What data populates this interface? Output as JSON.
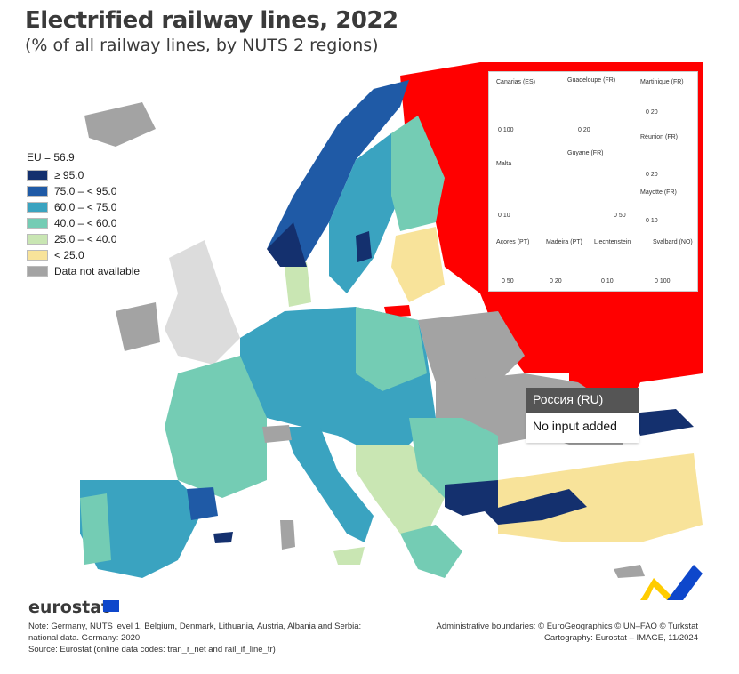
{
  "title": "Electrified railway lines, 2022",
  "subtitle": "(% of all railway lines, by NUTS 2 regions)",
  "legend": {
    "eu_value": "EU = 56.9",
    "classes": [
      {
        "label": "≥ 95.0",
        "color": "#14306e"
      },
      {
        "label": "75.0 – < 95.0",
        "color": "#1f5aa6"
      },
      {
        "label": "60.0 – < 75.0",
        "color": "#3aa3c0"
      },
      {
        "label": "40.0 – < 60.0",
        "color": "#74ccb4"
      },
      {
        "label": "25.0 – < 40.0",
        "color": "#c9e6b3"
      },
      {
        "label": "< 25.0",
        "color": "#f8e39a"
      },
      {
        "label": "Data not available",
        "color": "#a3a3a3"
      }
    ]
  },
  "tooltip": {
    "region": "Россия (RU)",
    "value": "No input added",
    "highlight_color": "#ff0000"
  },
  "insets": {
    "labels": [
      "Canarias (ES)",
      "Guadeloupe (FR)",
      "Martinique (FR)",
      "Réunion (FR)",
      "Malta",
      "Guyane (FR)",
      "Mayotte (FR)",
      "Açores (PT)",
      "Madeira (PT)",
      "Liechtenstein",
      "Svalbard (NO)"
    ],
    "scales": [
      "0 100",
      "0 20",
      "0 20",
      "0 20",
      "0 10",
      "0 50",
      "0 10",
      "0 50",
      "0 20",
      "0 10",
      "0 100"
    ]
  },
  "footer": {
    "logo": "eurostat",
    "note": "Note: Germany, NUTS level 1. Belgium, Denmark, Lithuania, Austria, Albania and Serbia: national data. Germany: 2020.",
    "source": "Source: Eurostat (online data codes: tran_r_net and rail_if_line_tr)",
    "boundaries": "Administrative boundaries: © EuroGeographics © UN–FAO © Turkstat",
    "cartography": "Cartography: Eurostat – IMAGE, 11/2024"
  }
}
